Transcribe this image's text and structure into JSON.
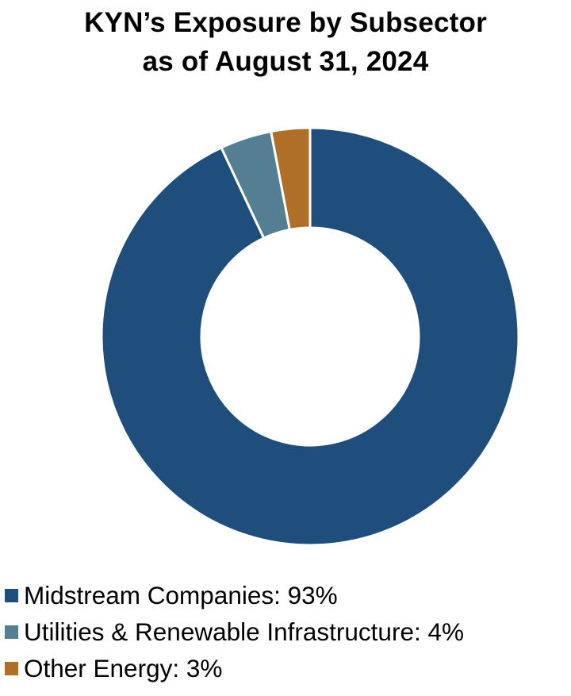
{
  "chart_data": {
    "type": "pie",
    "title": "KYN’s Exposure by Subsector",
    "subtitle": "as of August 31, 2024",
    "donut": true,
    "slices": [
      {
        "label": "Midstream Companies",
        "value": 93,
        "display": "Midstream Companies: 93%",
        "color": "#1f4e7c"
      },
      {
        "label": "Utilities & Renewable Infrastructure",
        "value": 4,
        "display": "Utilities & Renewable Infrastructure: 4%",
        "color": "#547f93"
      },
      {
        "label": "Other Energy",
        "value": 3,
        "display": "Other Energy: 3%",
        "color": "#b06f28"
      }
    ],
    "legend_position": "bottom-left"
  }
}
